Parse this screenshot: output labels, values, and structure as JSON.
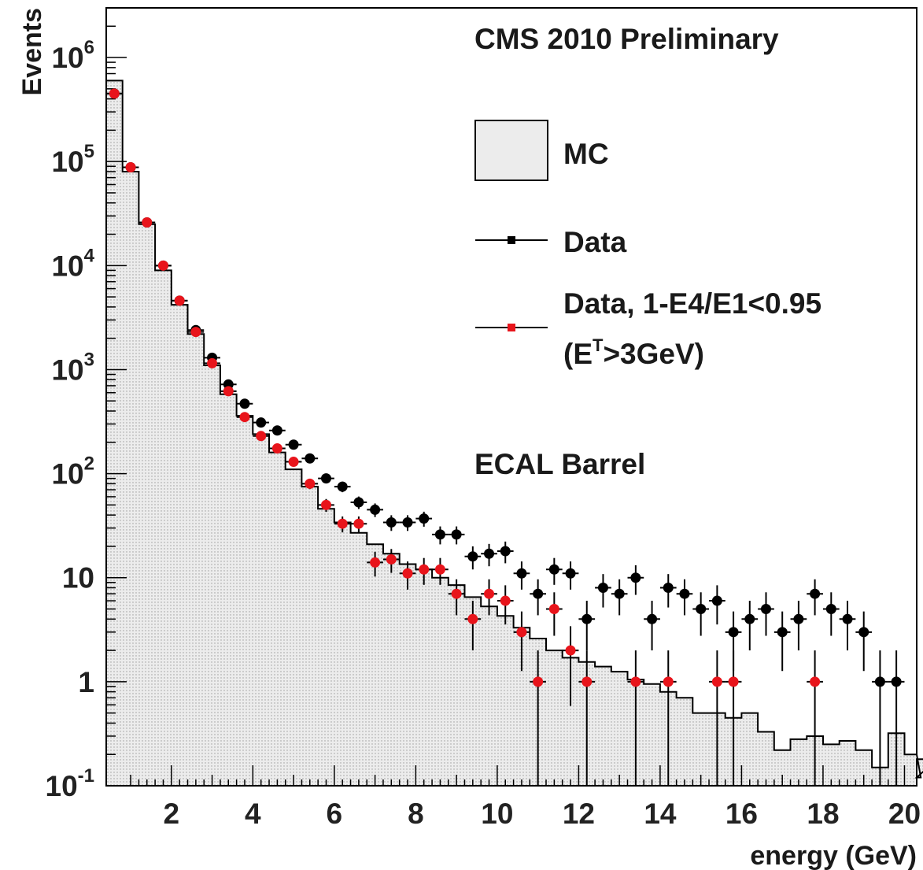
{
  "chart_data": {
    "type": "histogram",
    "yscale": "log",
    "xlabel": "energy (GeV)",
    "ylabel": "Events",
    "xlim": [
      0.4,
      20.3
    ],
    "ylim": [
      0.1,
      3000000
    ],
    "x_ticks": [
      "2",
      "4",
      "6",
      "8",
      "10",
      "12",
      "14",
      "16",
      "18",
      "20"
    ],
    "y_ticks": [
      {
        "base": "10",
        "exp": "-1"
      },
      {
        "base": "1",
        "exp": ""
      },
      {
        "base": "10",
        "exp": ""
      },
      {
        "base": "10",
        "exp": "2"
      },
      {
        "base": "10",
        "exp": "3"
      },
      {
        "base": "10",
        "exp": "4"
      },
      {
        "base": "10",
        "exp": "5"
      },
      {
        "base": "10",
        "exp": "6"
      }
    ],
    "annotations": {
      "experiment": "CMS 2010 Preliminary",
      "region": "ECAL Barrel"
    },
    "legend": {
      "position": "top-right",
      "mc": "MC",
      "data": "Data",
      "data_cut_line1": "Data, 1-E4/E1<0.95",
      "data_cut_line2_prefix": "(E",
      "data_cut_line2_sup": "T",
      "data_cut_line2_suffix": ">3GeV)"
    },
    "colors": {
      "mc_fill": "#ececec",
      "mc_line": "#000000",
      "data": "#000000",
      "data_cut": "#e8141b"
    },
    "mc_bin_width": 0.4,
    "mc_bin_start": 0.6,
    "mc_values": [
      600000,
      80000,
      25000,
      9000,
      4200,
      2200,
      1100,
      580,
      360,
      240,
      160,
      110,
      75,
      46,
      34,
      27,
      21,
      17,
      13.5,
      12,
      10,
      8.5,
      6.5,
      5.3,
      4.3,
      3.3,
      2.6,
      2.0,
      1.7,
      1.55,
      1.4,
      1.25,
      1.05,
      0.95,
      0.8,
      0.7,
      0.5,
      0.5,
      0.45,
      0.5,
      0.33,
      0.22,
      0.28,
      0.3,
      0.25,
      0.27,
      0.22,
      0.15,
      0.32,
      0.2,
      0.12,
      0.18
    ],
    "series": [
      {
        "name": "Data",
        "x": [
          0.6,
          1.0,
          1.4,
          1.8,
          2.2,
          2.6,
          3.0,
          3.4,
          3.8,
          4.2,
          4.6,
          5.0,
          5.4,
          5.8,
          6.2,
          6.6,
          7.0,
          7.4,
          7.8,
          8.2,
          8.6,
          9.0,
          9.4,
          9.8,
          10.2,
          10.6,
          11.0,
          11.4,
          11.8,
          12.2,
          12.6,
          13.0,
          13.4,
          13.8,
          14.2,
          14.6,
          15.0,
          15.4,
          15.8,
          16.2,
          16.6,
          17.0,
          17.4,
          17.8,
          18.2,
          18.6,
          19.0,
          19.4,
          19.8
        ],
        "y": [
          450000,
          88000,
          26000,
          10000,
          4600,
          2400,
          1300,
          720,
          470,
          310,
          260,
          190,
          140,
          90,
          75,
          53,
          45,
          34,
          34,
          37,
          26,
          26,
          16,
          17,
          18,
          11,
          7,
          12,
          11,
          4,
          8,
          7,
          10,
          4,
          8,
          7,
          5,
          6,
          3,
          4,
          5,
          3,
          4,
          7,
          5,
          4,
          3,
          1,
          1
        ]
      },
      {
        "name": "Data, 1-E4/E1<0.95 (ET>3GeV)",
        "x": [
          0.6,
          1.0,
          1.4,
          1.8,
          2.2,
          2.6,
          3.0,
          3.4,
          3.8,
          4.2,
          4.6,
          5.0,
          5.4,
          5.8,
          6.2,
          6.6,
          7.0,
          7.4,
          7.8,
          8.2,
          8.6,
          9.0,
          9.4,
          9.8,
          10.2,
          10.6,
          11.0,
          11.4,
          11.8,
          12.2,
          13.4,
          14.2,
          15.4,
          15.8,
          17.8
        ],
        "y": [
          450000,
          88000,
          26000,
          10000,
          4600,
          2300,
          1150,
          620,
          350,
          230,
          175,
          130,
          80,
          50,
          33,
          33,
          14,
          15,
          11,
          12,
          12,
          7,
          4,
          7,
          6,
          3,
          1,
          5,
          2,
          1,
          1,
          1,
          1,
          1,
          1
        ]
      }
    ]
  }
}
